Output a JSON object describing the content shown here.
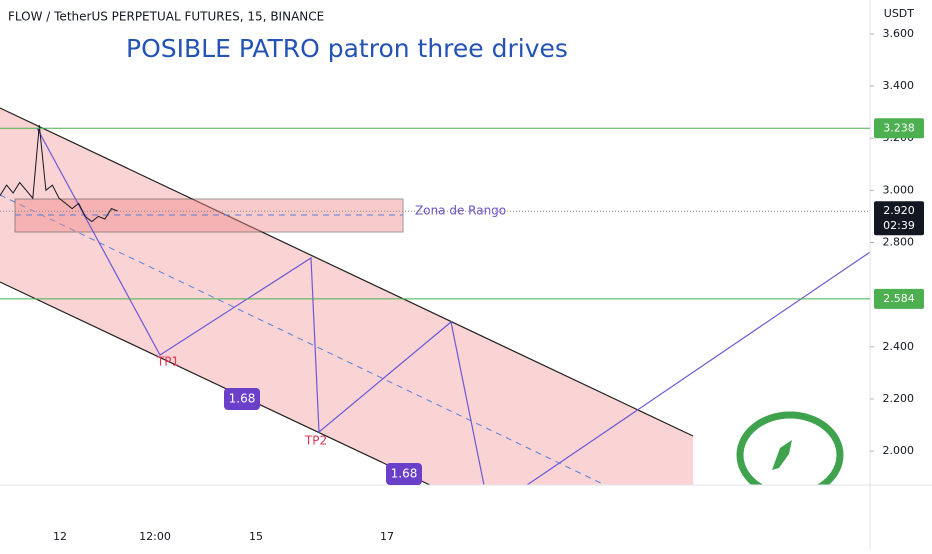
{
  "chart_data": {
    "type": "line",
    "title": "FLOW / TetherUS PERPETUAL FUTURES, 15, BINANCE",
    "y_unit": "USDT",
    "ylim": [
      1.87,
      3.73
    ],
    "yticks": [
      {
        "value": 3.6,
        "label": "3.600"
      },
      {
        "value": 3.4,
        "label": "3.400"
      },
      {
        "value": 3.2,
        "label": "3.200"
      },
      {
        "value": 3.0,
        "label": "3.000"
      },
      {
        "value": 2.8,
        "label": "2.800"
      },
      {
        "value": 2.4,
        "label": "2.400"
      },
      {
        "value": 2.2,
        "label": "2.200"
      },
      {
        "value": 2.0,
        "label": "2.000"
      }
    ],
    "xtick_labels": [
      "12",
      "12:00",
      "15",
      "17"
    ],
    "price": [
      2.98,
      3.02,
      2.99,
      3.03,
      3.0,
      2.97,
      3.25,
      3.0,
      3.02,
      2.97,
      2.95,
      2.93,
      2.95,
      2.9,
      2.88,
      2.9,
      2.89,
      2.93,
      2.92
    ],
    "color": "#131722",
    "levels": {
      "values": [
        3.238,
        2.584
      ],
      "value_labels": [
        "3.238",
        "2.584"
      ],
      "color": "#4caf50"
    },
    "last_price": {
      "value": 2.92,
      "label": "2.920",
      "countdown": "02:39"
    },
    "annotations": {
      "headline": "POSIBLE PATRO patron three drives",
      "zone": "Zona de Rango",
      "targets": [
        "TP1",
        "TP2"
      ],
      "ratios": [
        "1.68",
        "1.68"
      ]
    }
  }
}
